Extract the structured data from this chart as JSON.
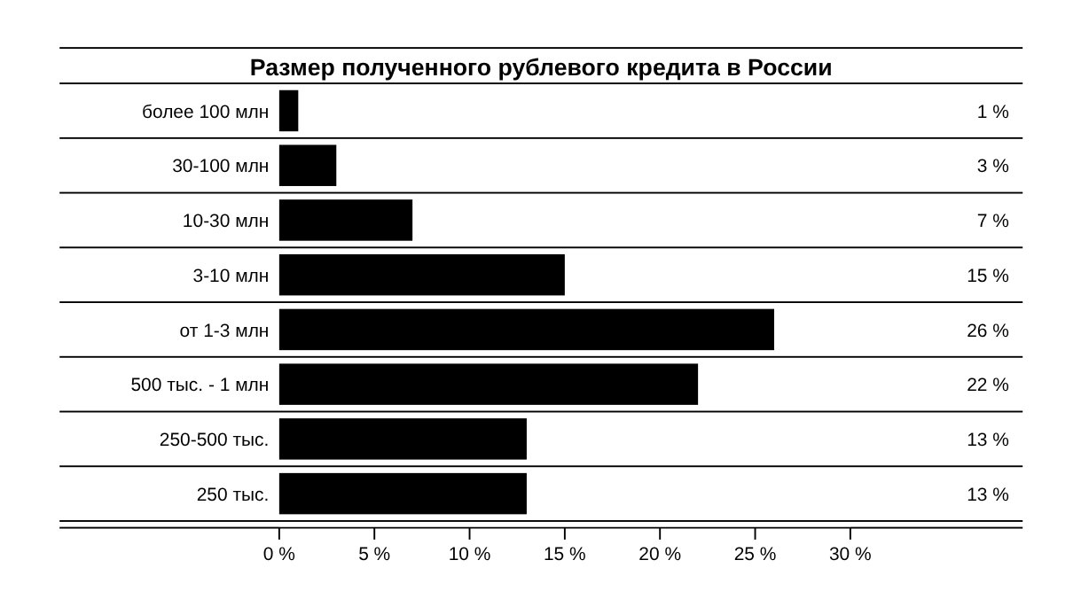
{
  "chart_data": {
    "type": "bar",
    "orientation": "horizontal",
    "title": "Размер полученного рублевого кредита в России",
    "categories": [
      "более 100 млн",
      "30-100 млн",
      "10-30 млн",
      "3-10 млн",
      "от 1-3 млн",
      "500 тыс. - 1 млн",
      "250-500 тыс.",
      "250 тыс."
    ],
    "values": [
      1,
      3,
      7,
      15,
      26,
      22,
      13,
      13
    ],
    "value_labels": [
      "1 %",
      "3 %",
      "7 %",
      "15 %",
      "26 %",
      "22 %",
      "13 %",
      "13 %"
    ],
    "color": "#000000",
    "xlim": [
      0,
      30
    ],
    "xticks": [
      {
        "value": 0,
        "label": "0 %"
      },
      {
        "value": 5,
        "label": "5 %"
      },
      {
        "value": 10,
        "label": "10 %"
      },
      {
        "value": 15,
        "label": "15 %"
      },
      {
        "value": 20,
        "label": "20 %"
      },
      {
        "value": 25,
        "label": "25 %"
      },
      {
        "value": 30,
        "label": "30 %"
      }
    ]
  }
}
